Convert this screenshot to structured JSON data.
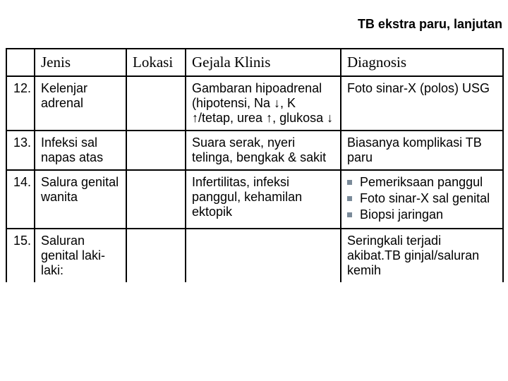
{
  "title": "TB ekstra paru, lanjutan",
  "columns": {
    "num": "",
    "jenis": "Jenis",
    "lokasi": "Lokasi",
    "gejala": "Gejala Klinis",
    "diagnosis": "Diagnosis"
  },
  "rows": [
    {
      "num": "12.",
      "jenis": "Kelenjar adrenal",
      "lokasi": "",
      "gejala": "Gambaran hipoadrenal (hipotensi, Na ↓, K ↑/tetap,  urea ↑, glukosa ↓",
      "diagnosis_text": "Foto sinar-X (polos) USG",
      "diagnosis_list": null
    },
    {
      "num": "13.",
      "jenis": "Infeksi sal napas atas",
      "lokasi": "",
      "gejala": "Suara serak, nyeri telinga, bengkak & sakit",
      "diagnosis_text": "Biasanya komplikasi TB paru",
      "diagnosis_list": null
    },
    {
      "num": "14.",
      "jenis": "Salura genital wanita",
      "lokasi": "",
      "gejala": "Infertilitas, infeksi panggul, kehamilan ektopik",
      "diagnosis_text": null,
      "diagnosis_list": [
        "Pemeriksaan panggul",
        "Foto sinar-X sal genital",
        "Biopsi jaringan"
      ]
    },
    {
      "num": "15.",
      "jenis": "Saluran genital laki-laki:",
      "lokasi": "",
      "gejala": "",
      "diagnosis_text": "Seringkali terjadi akibat.TB ginjal/saluran kemih",
      "diagnosis_list": null
    }
  ],
  "colors": {
    "bullet": "#7a8a99",
    "border": "#000000",
    "text": "#000000",
    "background": "#ffffff"
  }
}
